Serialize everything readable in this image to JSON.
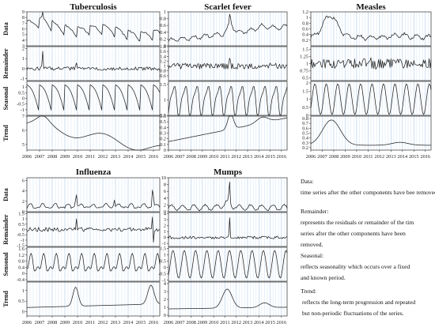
{
  "years": [
    "2006",
    "2007",
    "2008",
    "2009",
    "2010",
    "2011",
    "2012",
    "2013",
    "2014",
    "2015",
    "2016"
  ],
  "row_labels": [
    "Data",
    "Remainder",
    "Seasonal",
    "Trend"
  ],
  "row_labels_bottom": [
    "Data",
    "Remainder",
    "Sensonal",
    "Trend"
  ],
  "legend": {
    "data_title": "Data:",
    "data_text": "time series after the other components have bee removed.",
    "remainder_title": "Remainder:",
    "remainder_text_1": "represents the residuals or remainder of the tim",
    "remainder_text_2": "series after the other components have been",
    "remainder_text_3": "removed.",
    "seasonal_title": "Seasonal:",
    "seasonal_text_1": "reflects seasonality which occurs over a fixed",
    "seasonal_text_2": "and known period.",
    "trend_title": "Trend:",
    "trend_text_1": "reflects the long-term progression and repeated",
    "trend_text_2": "but non-periodic fluctuations of the series."
  },
  "chart_data": [
    {
      "type": "line",
      "title": "Tuberculosis",
      "x_range": [
        2006,
        2016.5
      ],
      "panels": {
        "data": {
          "ylim": [
            3,
            9
          ],
          "yticks": [
            3,
            4,
            5,
            6,
            7,
            8,
            9
          ],
          "shape": "tb_data"
        },
        "remainder": {
          "ylim": [
            -1.2,
            2.2
          ],
          "yticks": [
            -1,
            0,
            1,
            2
          ],
          "shape": "tb_rem"
        },
        "seasonal": {
          "ylim": [
            -1.5,
            1.5
          ],
          "yticks": [
            -1,
            -0.5,
            0,
            0.5,
            1
          ],
          "shape": "tb_seas"
        },
        "trend": {
          "ylim": [
            4.6,
            7
          ],
          "yticks": [
            5,
            6,
            7
          ],
          "shape": "tb_trend"
        }
      }
    },
    {
      "type": "line",
      "title": "Scarlet fever",
      "x_range": [
        2006,
        2016.5
      ],
      "panels": {
        "data": {
          "ylim": [
            0,
            1
          ],
          "yticks": [
            0,
            0.2,
            0.4,
            0.6,
            0.8,
            1.0
          ],
          "shape": "sf_data"
        },
        "remainder": {
          "ylim": [
            0.4,
            1.8
          ],
          "yticks": [
            0.6,
            0.8,
            1.0,
            1.2,
            1.4,
            1.6,
            1.8
          ],
          "shape": "sf_rem"
        },
        "seasonal": {
          "ylim": [
            0.5,
            1.6
          ],
          "yticks": [
            0.5,
            1.0,
            1.5
          ],
          "shape": "sf_seas"
        },
        "trend": {
          "ylim": [
            0,
            0.6
          ],
          "yticks": [
            0,
            0.1,
            0.2,
            0.3,
            0.4,
            0.5,
            0.6
          ],
          "shape": "sf_trend"
        }
      }
    },
    {
      "type": "line",
      "title": "Measles",
      "x_range": [
        2006,
        2016.5
      ],
      "panels": {
        "data": {
          "ylim": [
            0,
            1.2
          ],
          "yticks": [
            0.2,
            0.4,
            0.6,
            0.8,
            1.0,
            1.2
          ],
          "shape": "ms_data"
        },
        "remainder": {
          "ylim": [
            0.4,
            1.6
          ],
          "yticks": [
            0.5,
            0.75,
            1.0,
            1.25,
            1.5
          ],
          "shape": "ms_rem"
        },
        "seasonal": {
          "ylim": [
            0,
            2.1
          ],
          "yticks": [
            0,
            0.5,
            1.0,
            1.5,
            2.0
          ],
          "shape": "ms_seas"
        },
        "trend": {
          "ylim": [
            0.15,
            0.85
          ],
          "yticks": [
            0.2,
            0.3,
            0.4,
            0.5,
            0.6,
            0.7,
            0.8
          ],
          "shape": "ms_trend"
        }
      }
    },
    {
      "type": "line",
      "title": "Influenza",
      "x_range": [
        2006,
        2016.5
      ],
      "panels": {
        "data": {
          "ylim": [
            0,
            6.5
          ],
          "yticks": [
            0,
            2,
            4,
            6
          ],
          "shape": "in_data"
        },
        "remainder": {
          "ylim": [
            -1.6,
            1.6
          ],
          "yticks": [
            -1.5,
            -1.0,
            -0.5,
            0,
            0.5,
            1.0,
            1.5
          ],
          "shape": "in_rem"
        },
        "seasonal": {
          "ylim": [
            -0.5,
            1.7
          ],
          "yticks": [
            -0.4,
            0,
            0.4,
            0.8,
            1.2,
            1.6
          ],
          "shape": "in_seas"
        },
        "trend": {
          "ylim": [
            -0.2,
            1.4
          ],
          "yticks": [
            0,
            0.5,
            1
          ],
          "shape": "in_trend"
        }
      }
    },
    {
      "type": "line",
      "title": "Mumps",
      "x_range": [
        2006,
        2016.5
      ],
      "panels": {
        "data": {
          "ylim": [
            0,
            10
          ],
          "yticks": [
            0,
            2,
            4,
            6,
            8,
            10
          ],
          "shape": "mu_data"
        },
        "remainder": {
          "ylim": [
            -1.5,
            4.2
          ],
          "yticks": [
            -1,
            0,
            1,
            2,
            3,
            4
          ],
          "shape": "mu_rem"
        },
        "seasonal": {
          "ylim": [
            -1.1,
            1.6
          ],
          "yticks": [
            -1.0,
            -0.5,
            0,
            0.5,
            1.0,
            1.5
          ],
          "shape": "mu_seas"
        },
        "trend": {
          "ylim": [
            -0.1,
            4.2
          ],
          "yticks": [
            0,
            1,
            2,
            3,
            4
          ],
          "shape": "mu_trend"
        }
      }
    }
  ]
}
